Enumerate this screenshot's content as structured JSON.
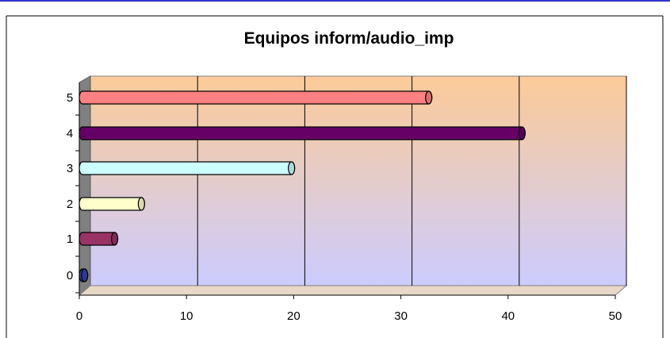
{
  "chart_data": {
    "type": "bar",
    "orientation": "horizontal",
    "title": "Equipos inform/audio_imp",
    "categories": [
      "0",
      "1",
      "2",
      "3",
      "4",
      "5"
    ],
    "values": [
      0.2,
      3,
      5.5,
      19.5,
      41,
      32.3
    ],
    "bar_colors": [
      "#3344aa",
      "#993366",
      "#ffffcc",
      "#ccffff",
      "#660066",
      "#ff8080"
    ],
    "x_ticks": [
      "0",
      "10",
      "20",
      "30",
      "40",
      "50"
    ],
    "xlim": [
      0,
      50
    ],
    "xlabel": "",
    "ylabel": "",
    "grid": true,
    "legend": "none",
    "background_gradient": [
      "#fccb98",
      "#ccccff"
    ]
  }
}
